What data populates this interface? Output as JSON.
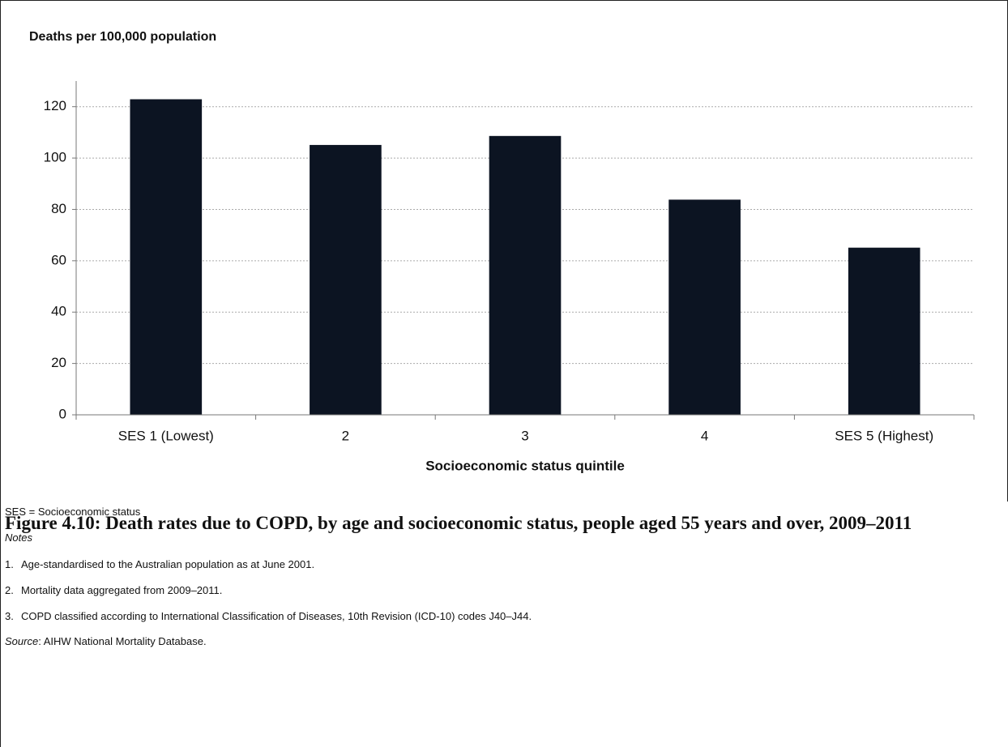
{
  "chart_data": {
    "type": "bar",
    "y_label": "Deaths per 100,000 population",
    "x_label": "Socioeconomic status quintile",
    "categories": [
      "SES 1 (Lowest)",
      "2",
      "3",
      "4",
      "SES 5  (Highest)"
    ],
    "values": [
      122.9,
      105.1,
      108.6,
      83.8,
      65.1
    ],
    "color": "#0c1422",
    "ylim": [
      0,
      130
    ],
    "yticks": [
      0,
      20,
      40,
      60,
      80,
      100,
      120
    ],
    "grid": true
  },
  "notes": {
    "abbreviation": "SES = Socioeconomic status",
    "heading": "Notes",
    "items": [
      {
        "number": "1.",
        "text": "Age-standardised to the Australian population as at June 2001."
      },
      {
        "number": "2.",
        "text": "Mortality data aggregated from 2009–2011."
      },
      {
        "number": "3.",
        "text": "COPD classified according to International Classification of Diseases, 10th Revision (ICD-10) codes J40–J44."
      }
    ],
    "source_label": "Source",
    "source_text": ": AIHW National Mortality Database."
  },
  "caption": "Figure 4.10: Death rates due to COPD, by age and socioeconomic status, people aged 55 years and over, 2009–2011"
}
